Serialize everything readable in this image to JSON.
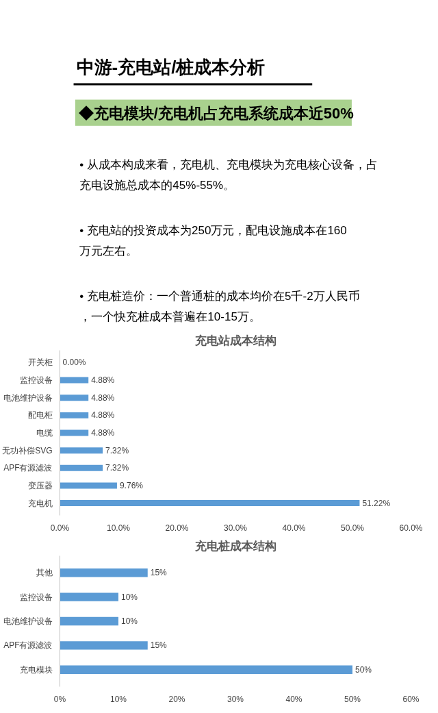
{
  "chart_data": [
    {
      "type": "other",
      "title": "中游-充电站/桩成本分析",
      "subtitle": "◆充电模块/充电机占充电系统成本近50%",
      "annotations": [
        "• 从成本构成来看，充电机、充电模块为充电核心设备，占充电设施总成本的45%-55%。",
        "• 充电站的投资成本为250万元，配电设施成本在160万元左右。",
        "• 充电桩造价：一个普通桩的成本均价在5千-2万人民币，一个快充桩成本普遍在10-15万。"
      ]
    },
    {
      "type": "bar",
      "orientation": "horizontal",
      "title": "充电站成本结构",
      "color": "#5b9bd5",
      "grid": false,
      "categories": [
        "开关柜",
        "监控设备",
        "电池维护设备",
        "配电柜",
        "电缆",
        "无功补偿SVG",
        "APF有源滤波",
        "变压器",
        "充电机"
      ],
      "values": [
        0,
        4.88,
        4.88,
        4.88,
        4.88,
        7.32,
        7.32,
        9.76,
        51.22
      ],
      "value_labels": [
        "0.00%",
        "4.88%",
        "4.88%",
        "4.88%",
        "4.88%",
        "7.32%",
        "7.32%",
        "9.76%",
        "51.22%"
      ],
      "xlim": [
        0,
        60
      ],
      "xticks": [
        {
          "value": 0,
          "label": "0.0%"
        },
        {
          "value": 10,
          "label": "10.0%"
        },
        {
          "value": 20,
          "label": "20.0%"
        },
        {
          "value": 30,
          "label": "30.0%"
        },
        {
          "value": 40,
          "label": "40.0%"
        },
        {
          "value": 50,
          "label": "50.0%"
        },
        {
          "value": 60,
          "label": "60.0%"
        }
      ]
    },
    {
      "type": "bar",
      "orientation": "horizontal",
      "title": "充电桩成本结构",
      "color": "#5b9bd5",
      "grid": false,
      "categories": [
        "其他",
        "监控设备",
        "电池维护设备",
        "APF有源滤波",
        "充电模块"
      ],
      "values": [
        15,
        10,
        10,
        15,
        50
      ],
      "value_labels": [
        "15%",
        "10%",
        "10%",
        "15%",
        "50%"
      ],
      "xlim": [
        0,
        60
      ],
      "xticks": [
        {
          "value": 0,
          "label": "0%"
        },
        {
          "value": 10,
          "label": "10%"
        },
        {
          "value": 20,
          "label": "20%"
        },
        {
          "value": 30,
          "label": "30%"
        },
        {
          "value": 40,
          "label": "40%"
        },
        {
          "value": 50,
          "label": "50%"
        },
        {
          "value": 60,
          "label": "60%"
        }
      ]
    }
  ]
}
